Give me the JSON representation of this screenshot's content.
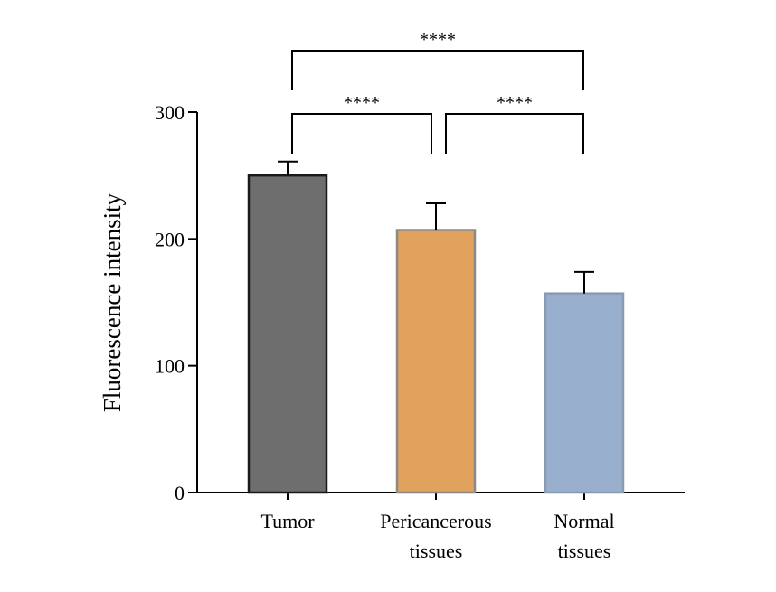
{
  "chart_data": {
    "type": "bar",
    "title": "",
    "xlabel": "",
    "ylabel": "Fluorescence intensity",
    "ylim": [
      0,
      300
    ],
    "yticks": [
      0,
      100,
      200,
      300
    ],
    "grid": false,
    "categories": [
      {
        "lines": [
          "Tumor"
        ]
      },
      {
        "lines": [
          "Pericancerous",
          "tissues"
        ]
      },
      {
        "lines": [
          "Normal",
          "tissues"
        ]
      }
    ],
    "values": [
      250,
      207,
      157
    ],
    "errors": [
      11,
      21,
      17
    ],
    "colors": [
      "#6e6e6e",
      "#e0a25c",
      "#98afcd"
    ],
    "edge_colors": [
      "#1a1a1a",
      "#8a8a8a",
      "#8a9ab0"
    ],
    "significance": [
      {
        "from": 0,
        "to": 1,
        "label": "****"
      },
      {
        "from": 1,
        "to": 2,
        "label": "****"
      },
      {
        "from": 0,
        "to": 2,
        "label": "****"
      }
    ]
  }
}
